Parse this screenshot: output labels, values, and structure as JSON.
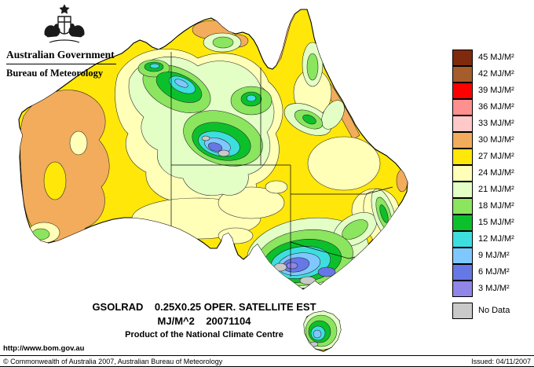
{
  "header": {
    "government": "Australian Government",
    "bureau": "Bureau of Meteorology"
  },
  "map": {
    "title_line1": "GSOLRAD    0.25X0.25 OPER. SATELLITE EST",
    "title_line2": "MJ/M^2    20071104",
    "title_line3": "Product of the National Climate Centre"
  },
  "legend": {
    "entries": [
      {
        "key": "45",
        "label": "45 MJ/M²",
        "color": "#7F2A0C"
      },
      {
        "key": "42",
        "label": "42 MJ/M²",
        "color": "#A55D2B"
      },
      {
        "key": "39",
        "label": "39 MJ/M²",
        "color": "#FF0000"
      },
      {
        "key": "36",
        "label": "36 MJ/M²",
        "color": "#FF9090"
      },
      {
        "key": "33",
        "label": "33 MJ/M²",
        "color": "#FFC9C9"
      },
      {
        "key": "30",
        "label": "30 MJ/M²",
        "color": "#F2AC5C"
      },
      {
        "key": "27",
        "label": "27 MJ/M²",
        "color": "#FFE70A"
      },
      {
        "key": "24",
        "label": "24 MJ/M²",
        "color": "#FFFFB8"
      },
      {
        "key": "21",
        "label": "21 MJ/M²",
        "color": "#E3FFC6"
      },
      {
        "key": "18",
        "label": "18 MJ/M²",
        "color": "#8BE55F"
      },
      {
        "key": "15",
        "label": "15 MJ/M²",
        "color": "#0CC02C"
      },
      {
        "key": "12",
        "label": "12 MJ/M²",
        "color": "#3FDEDE"
      },
      {
        "key": "9",
        "label": "9 MJ/M²",
        "color": "#7FC8FF"
      },
      {
        "key": "6",
        "label": "6 MJ/M²",
        "color": "#6678E6"
      },
      {
        "key": "3",
        "label": "3 MJ/M²",
        "color": "#8F86E8"
      },
      {
        "key": "nodata",
        "label": "No Data",
        "color": "#C9C9C9"
      }
    ]
  },
  "footer": {
    "url": "http://www.bom.gov.au",
    "copyright": "© Commonwealth of Australia 2007, Australian Bureau of Meteorology",
    "issued": "Issued: 04/11/2007"
  }
}
